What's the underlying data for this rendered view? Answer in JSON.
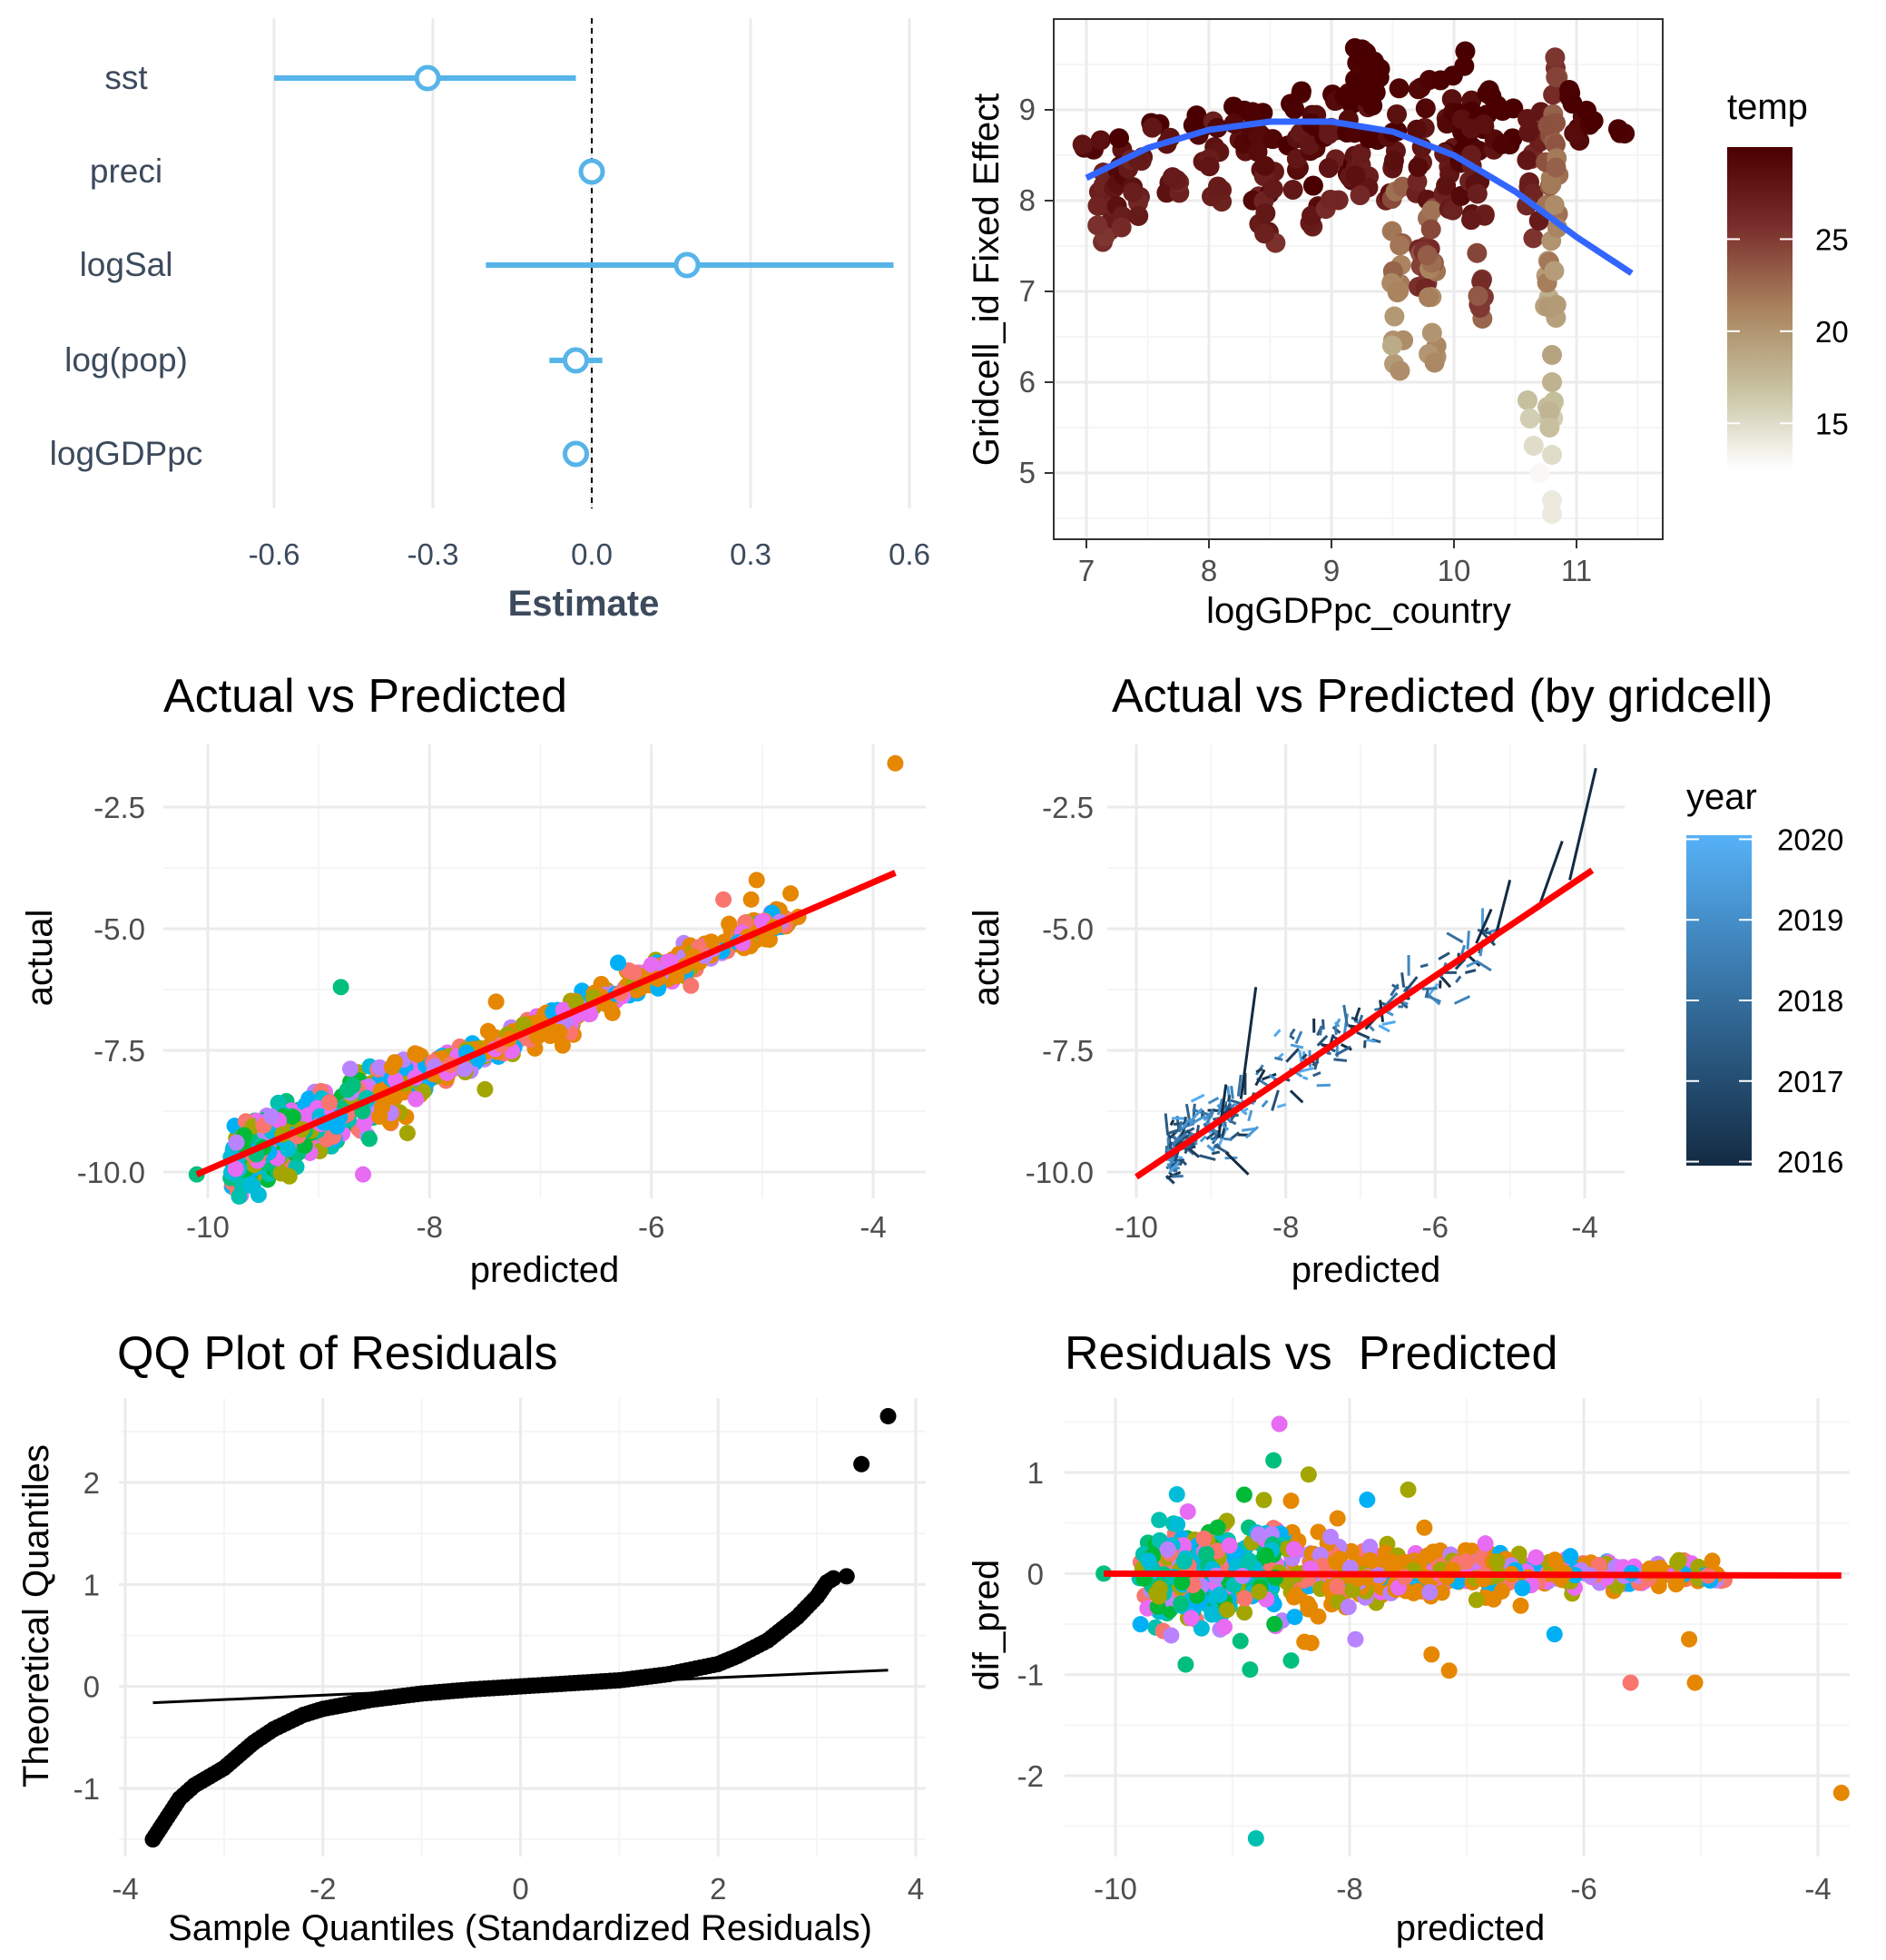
{
  "colors": {
    "coef_blue": "#56B4E9",
    "smooth_blue": "#3366FF",
    "fit_red": "#FF0000",
    "qq_black": "#000000",
    "label_slate": "#3C4A5C",
    "group_palette": [
      "#F8766D",
      "#E58700",
      "#C99800",
      "#A3A500",
      "#6BB100",
      "#00BA38",
      "#00BF7D",
      "#00C0AF",
      "#00BCD8",
      "#00B0F6",
      "#619CFF",
      "#B983FF",
      "#E76BF3",
      "#FD61D1",
      "#FF67A4"
    ],
    "temp_scale": [
      "#ffffff",
      "#c7c2a0",
      "#a9835e",
      "#7a2f2c",
      "#4a0000"
    ],
    "year_scale": [
      "#132B43",
      "#56B1F7"
    ]
  },
  "chart_data": [
    {
      "id": "coef",
      "type": "scatter",
      "subtype": "coefficient plot (point estimate with interval)",
      "title": "",
      "xlabel": "Estimate",
      "ylabel": "",
      "categories": [
        "sst",
        "preci",
        "logSal",
        "log(pop)",
        "logGDPpc"
      ],
      "estimates": [
        -0.31,
        0.0,
        0.18,
        -0.03,
        -0.03
      ],
      "lower": [
        -0.6,
        0.0,
        -0.2,
        -0.08,
        -0.03
      ],
      "upper": [
        -0.03,
        0.0,
        0.57,
        0.02,
        -0.03
      ],
      "xlim": [
        -0.64,
        0.64
      ],
      "xticks": [
        "-0.6",
        "-0.3",
        "0.0",
        "0.3",
        "0.6"
      ],
      "reference_line": 0.0,
      "grid": "vertical"
    },
    {
      "id": "fe",
      "type": "scatter",
      "title": "",
      "xlabel": "logGDPpc_country",
      "ylabel": "Gridcell_id Fixed Effect",
      "xlim": [
        6.78,
        11.7
      ],
      "ylim": [
        4.35,
        9.95
      ],
      "xticks": [
        "7",
        "8",
        "9",
        "10",
        "11"
      ],
      "yticks": [
        "5",
        "6",
        "7",
        "8",
        "9"
      ],
      "color_legend": {
        "title": "temp",
        "range": [
          12.5,
          30
        ],
        "ticks": [
          "15",
          "20",
          "25"
        ]
      },
      "clusters": [
        {
          "x": 7.0,
          "ymin": 8.3,
          "ymax": 8.7,
          "temp": 28
        },
        {
          "x": 7.15,
          "ymin": 7.4,
          "ymax": 8.7,
          "temp": 27
        },
        {
          "x": 7.25,
          "ymin": 7.6,
          "ymax": 8.8,
          "temp": 28
        },
        {
          "x": 7.4,
          "ymin": 7.7,
          "ymax": 8.8,
          "temp": 27
        },
        {
          "x": 7.55,
          "ymin": 8.7,
          "ymax": 9.0,
          "temp": 28
        },
        {
          "x": 7.7,
          "ymin": 8.0,
          "ymax": 8.9,
          "temp": 27
        },
        {
          "x": 7.9,
          "ymin": 8.4,
          "ymax": 9.1,
          "temp": 28
        },
        {
          "x": 8.05,
          "ymin": 7.8,
          "ymax": 8.9,
          "temp": 27
        },
        {
          "x": 8.25,
          "ymin": 8.5,
          "ymax": 9.2,
          "temp": 28
        },
        {
          "x": 8.4,
          "ymin": 7.6,
          "ymax": 9.0,
          "temp": 28
        },
        {
          "x": 8.5,
          "ymin": 7.5,
          "ymax": 8.8,
          "temp": 27
        },
        {
          "x": 8.7,
          "ymin": 8.1,
          "ymax": 9.3,
          "temp": 28
        },
        {
          "x": 8.85,
          "ymin": 7.5,
          "ymax": 9.0,
          "temp": 28
        },
        {
          "x": 9.0,
          "ymin": 7.9,
          "ymax": 9.4,
          "temp": 27
        },
        {
          "x": 9.15,
          "ymin": 8.0,
          "ymax": 9.5,
          "temp": 28
        },
        {
          "x": 9.25,
          "ymin": 7.9,
          "ymax": 9.7,
          "temp": 27
        },
        {
          "x": 9.35,
          "ymin": 8.4,
          "ymax": 9.6,
          "temp": 28
        },
        {
          "x": 9.5,
          "ymin": 8.0,
          "ymax": 9.4,
          "temp": 28
        },
        {
          "x": 9.55,
          "ymin": 6.1,
          "ymax": 8.2,
          "temp": 23
        },
        {
          "x": 9.75,
          "ymin": 7.0,
          "ymax": 9.4,
          "temp": 27
        },
        {
          "x": 9.8,
          "ymin": 6.2,
          "ymax": 8.0,
          "temp": 24
        },
        {
          "x": 9.95,
          "ymin": 7.7,
          "ymax": 9.5,
          "temp": 27
        },
        {
          "x": 10.1,
          "ymin": 7.9,
          "ymax": 9.7,
          "temp": 28
        },
        {
          "x": 10.2,
          "ymin": 6.5,
          "ymax": 9.0,
          "temp": 27
        },
        {
          "x": 10.3,
          "ymin": 8.4,
          "ymax": 9.3,
          "temp": 28
        },
        {
          "x": 10.45,
          "ymin": 8.6,
          "ymax": 9.1,
          "temp": 28
        },
        {
          "x": 10.65,
          "ymin": 7.5,
          "ymax": 9.0,
          "temp": 26
        },
        {
          "x": 10.8,
          "ymin": 5.2,
          "ymax": 9.6,
          "temp": 22
        },
        {
          "x": 11.0,
          "ymin": 8.5,
          "ymax": 9.4,
          "temp": 28
        },
        {
          "x": 11.1,
          "ymin": 8.8,
          "ymax": 9.0,
          "temp": 28
        },
        {
          "x": 11.4,
          "ymin": 8.7,
          "ymax": 8.8,
          "temp": 28
        }
      ],
      "low_points": [
        {
          "x": 10.6,
          "y": 5.8,
          "temp": 17
        },
        {
          "x": 10.62,
          "y": 5.6,
          "temp": 16
        },
        {
          "x": 10.65,
          "y": 5.3,
          "temp": 15
        },
        {
          "x": 10.7,
          "y": 5.0,
          "temp": 13
        },
        {
          "x": 10.78,
          "y": 5.5,
          "temp": 17
        },
        {
          "x": 10.8,
          "y": 4.7,
          "temp": 14
        },
        {
          "x": 10.8,
          "y": 4.55,
          "temp": 14
        },
        {
          "x": 10.8,
          "y": 5.2,
          "temp": 15
        },
        {
          "x": 10.8,
          "y": 6.3,
          "temp": 19
        },
        {
          "x": 10.8,
          "y": 6.0,
          "temp": 18
        }
      ],
      "smooth_curve": {
        "type": "quadratic",
        "x": [
          7.0,
          7.5,
          8.0,
          8.5,
          9.0,
          9.5,
          10.0,
          10.5,
          11.0,
          11.45
        ],
        "y": [
          8.25,
          8.58,
          8.78,
          8.87,
          8.87,
          8.76,
          8.5,
          8.1,
          7.6,
          7.2
        ]
      }
    },
    {
      "id": "avp",
      "type": "scatter",
      "title": "Actual vs Predicted",
      "xlabel": "predicted",
      "ylabel": "actual",
      "xlim": [
        -10.35,
        -3.55
      ],
      "ylim": [
        -10.5,
        -1.2
      ],
      "xticks": [
        "-10",
        "-8",
        "-6",
        "-4"
      ],
      "yticks": [
        "-2.5",
        "-5.0",
        "-7.5",
        "-10.0"
      ],
      "fit_line": {
        "x": [
          -10.1,
          -3.8
        ],
        "y": [
          -10.05,
          -3.85
        ]
      },
      "points_bulk": {
        "count": 900,
        "x_range": [
          -9.9,
          -4.6
        ],
        "spread": 0.28
      },
      "outliers": [
        {
          "x": -8.8,
          "y": -6.2,
          "c": 6
        },
        {
          "x": -8.6,
          "y": -10.05,
          "c": 12
        },
        {
          "x": -8.2,
          "y": -9.2,
          "c": 3
        },
        {
          "x": -7.5,
          "y": -8.3,
          "c": 3
        },
        {
          "x": -7.4,
          "y": -6.5,
          "c": 1
        },
        {
          "x": -6.8,
          "y": -7.4,
          "c": 1
        },
        {
          "x": -6.3,
          "y": -5.7,
          "c": 9
        },
        {
          "x": -5.3,
          "y": -4.9,
          "c": 1
        },
        {
          "x": -5.35,
          "y": -4.4,
          "c": 0
        },
        {
          "x": -5.1,
          "y": -4.4,
          "c": 1
        },
        {
          "x": -5.05,
          "y": -4.0,
          "c": 1
        },
        {
          "x": -3.8,
          "y": -1.6,
          "c": 1
        },
        {
          "x": -10.1,
          "y": -10.05,
          "c": 6
        }
      ]
    },
    {
      "id": "avpg",
      "type": "line",
      "title": "Actual vs Predicted (by gridcell)",
      "xlabel": "predicted",
      "ylabel": "actual",
      "xlim": [
        -10.35,
        -3.55
      ],
      "ylim": [
        -10.5,
        -1.2
      ],
      "xticks": [
        "-10",
        "-8",
        "-6",
        "-4"
      ],
      "yticks": [
        "-2.5",
        "-5.0",
        "-7.5",
        "-10.0"
      ],
      "color_legend": {
        "title": "year",
        "range": [
          2015.95,
          2020.05
        ],
        "ticks": [
          "2020",
          "2019",
          "2018",
          "2017",
          "2016"
        ]
      },
      "fit_line": {
        "x": [
          -10.0,
          -3.9
        ],
        "y": [
          -10.1,
          -3.8
        ]
      },
      "segments_bulk": {
        "count": 260,
        "x_range": [
          -9.6,
          -5.2
        ]
      },
      "long_segments": [
        {
          "x1": -8.6,
          "y1": -8.5,
          "x2": -8.4,
          "y2": -6.2
        },
        {
          "x1": -4.2,
          "y1": -4.0,
          "x2": -3.85,
          "y2": -1.7
        },
        {
          "x1": -4.6,
          "y1": -4.5,
          "x2": -4.3,
          "y2": -3.2
        },
        {
          "x1": -5.2,
          "y1": -5.2,
          "x2": -5.0,
          "y2": -4.0
        },
        {
          "x1": -5.45,
          "y1": -5.3,
          "x2": -5.25,
          "y2": -4.6
        },
        {
          "x1": -8.8,
          "y1": -9.6,
          "x2": -8.5,
          "y2": -10.05
        },
        {
          "x1": -8.9,
          "y1": -9.3,
          "x2": -8.8,
          "y2": -8.2
        }
      ]
    },
    {
      "id": "qq",
      "type": "scatter",
      "title": "QQ Plot of Residuals",
      "xlabel": "Sample Quantiles (Standardized Residuals)",
      "ylabel": "Theoretical Quantiles",
      "xlim": [
        -4.1,
        4.15
      ],
      "ylim": [
        -1.58,
        2.82
      ],
      "xticks": [
        "-4",
        "-2",
        "0",
        "2",
        "4"
      ],
      "yticks": [
        "2",
        "1",
        "0",
        "-1"
      ],
      "reference_line": {
        "x": [
          -3.72,
          3.72
        ],
        "y": [
          -0.16,
          0.16
        ]
      },
      "curve_knots": {
        "x": [
          -3.72,
          -3.45,
          -3.3,
          -3.0,
          -2.7,
          -2.5,
          -2.2,
          -2.0,
          -1.5,
          -1.0,
          -0.5,
          0,
          0.5,
          1.0,
          1.5,
          2.0,
          2.2,
          2.5,
          2.8,
          3.0,
          3.1,
          3.2
        ],
        "y": [
          -1.5,
          -1.1,
          -0.97,
          -0.8,
          -0.55,
          -0.42,
          -0.28,
          -0.22,
          -0.13,
          -0.07,
          -0.03,
          0.0,
          0.03,
          0.06,
          0.12,
          0.22,
          0.3,
          0.45,
          0.68,
          0.88,
          1.02,
          1.08
        ]
      },
      "extreme_points": [
        {
          "x": 3.3,
          "y": 1.08
        },
        {
          "x": 3.45,
          "y": 2.18
        },
        {
          "x": 3.72,
          "y": 2.65
        }
      ]
    },
    {
      "id": "rvp",
      "type": "scatter",
      "title": "Residuals vs  Predicted",
      "xlabel": "predicted",
      "ylabel": "dif_pred",
      "xlim": [
        -10.45,
        -3.5
      ],
      "ylim": [
        -2.78,
        1.6
      ],
      "xticks": [
        "-10",
        "-8",
        "-6",
        "-4"
      ],
      "yticks": [
        "1",
        "0",
        "-1",
        "-2"
      ],
      "fit_line": {
        "x": [
          -10.1,
          -3.8
        ],
        "y": [
          0.0,
          -0.02
        ]
      },
      "points_bulk": {
        "count": 800,
        "x_range": [
          -9.8,
          -4.6
        ]
      },
      "outliers": [
        {
          "x": -8.6,
          "y": 1.48,
          "c": 12
        },
        {
          "x": -8.65,
          "y": 1.12,
          "c": 6
        },
        {
          "x": -8.35,
          "y": 0.98,
          "c": 3
        },
        {
          "x": -7.5,
          "y": 0.83,
          "c": 3
        },
        {
          "x": -8.9,
          "y": 0.78,
          "c": 5
        },
        {
          "x": -8.5,
          "y": 0.72,
          "c": 1
        },
        {
          "x": -7.85,
          "y": 0.73,
          "c": 9
        },
        {
          "x": -8.85,
          "y": -0.95,
          "c": 6
        },
        {
          "x": -8.5,
          "y": -0.86,
          "c": 6
        },
        {
          "x": -9.4,
          "y": -0.9,
          "c": 6
        },
        {
          "x": -7.95,
          "y": -0.65,
          "c": 11
        },
        {
          "x": -7.3,
          "y": -0.8,
          "c": 1
        },
        {
          "x": -7.15,
          "y": -0.96,
          "c": 1
        },
        {
          "x": -6.25,
          "y": -0.6,
          "c": 9
        },
        {
          "x": -5.6,
          "y": -1.08,
          "c": 0
        },
        {
          "x": -5.1,
          "y": -0.65,
          "c": 1
        },
        {
          "x": -5.05,
          "y": -1.08,
          "c": 1
        },
        {
          "x": -3.8,
          "y": -2.17,
          "c": 1
        },
        {
          "x": -8.8,
          "y": -2.62,
          "c": 7
        },
        {
          "x": -10.1,
          "y": 0.0,
          "c": 6
        }
      ]
    }
  ]
}
